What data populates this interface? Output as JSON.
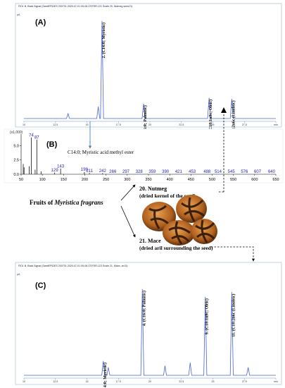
{
  "colors": {
    "trace": "#4a63d8",
    "frame": "#6a8ed8",
    "panel_border": "#b0c8e0",
    "ms_bar": "#111111",
    "ms_label": "#2020b0",
    "arrow": "#3a86c8",
    "seed_dark": "#3a2008",
    "seed_light": "#d98a35"
  },
  "icons": {
    "nutmeg_photo": "nutmeg-fruit-photo"
  },
  "panelA": {
    "letter": "(A)",
    "header": "FID1 B, Back Signal (SamlEP\\DES 200701 2020-07-01 09-06-07\\FSR-121 Scale 20, Nutmeg seed.D)",
    "pa_label": "pA"
  },
  "panelC": {
    "letter": "(C)",
    "header": "FID1 B, Back Signal (SamlEP\\DES 200701 2020-07-01 09-06-07\\FSR-123 Scale 21, Mace, arl.D)",
    "pa_label": "pA"
  },
  "panelB": {
    "letter": "(B)",
    "scale_label": "(x1,000)",
    "compound_label": "C14:0; Myristic acid methyl ester"
  },
  "fruit": {
    "prefix": "Fruits of ",
    "species": "Myristica fragrans",
    "nutmeg_title": "20. Nutmeg",
    "nutmeg_desc": "(dried kernel of the seed)",
    "mace_title": "21. Mace",
    "mace_desc": "(dried aril surrounding the seed)"
  },
  "chart_data": [
    {
      "type": "line",
      "panel": "A",
      "x_range": [
        10,
        30
      ],
      "x_ticks": [
        "10",
        "12.5",
        "15",
        "17.5",
        "20",
        "22.5",
        "25",
        "27.5",
        "min"
      ],
      "y_ticks": [
        "pA"
      ],
      "peaks": [
        {
          "x": 13.5,
          "y": 0.5,
          "label": ""
        },
        {
          "x": 15.9,
          "y": 1.2,
          "label": ""
        },
        {
          "x": 16.2,
          "y": 10.0,
          "label": "2. (C14:0; Myristic)"
        },
        {
          "x": 19.5,
          "y": 1.5,
          "label": "4. (C16:0; Palmitic)"
        },
        {
          "x": 24.7,
          "y": 2.1,
          "label": "9. (C18:1n9c; Oleic)"
        },
        {
          "x": 26.5,
          "y": 2.0,
          "label": "11. (C18:2n6c (Linoleic)"
        }
      ]
    },
    {
      "type": "bar",
      "panel": "B",
      "x_ticks": [
        "50",
        "100",
        "150",
        "200",
        "250",
        "300",
        "350",
        "400",
        "450",
        "500",
        "550",
        "600",
        "650"
      ],
      "y_ticks": [
        "0.0",
        "2.5",
        "5.0"
      ],
      "ylim": [
        0,
        7
      ],
      "peaks": [
        {
          "mz": 55,
          "abundance": 1.8,
          "label": ""
        },
        {
          "mz": 57,
          "abundance": 1.2,
          "label": ""
        },
        {
          "mz": 69,
          "abundance": 1.4,
          "label": ""
        },
        {
          "mz": 74,
          "abundance": 6.4,
          "label": "74"
        },
        {
          "mz": 83,
          "abundance": 0.8,
          "label": ""
        },
        {
          "mz": 87,
          "abundance": 6.0,
          "label": "87"
        },
        {
          "mz": 97,
          "abundance": 0.5,
          "label": ""
        },
        {
          "mz": 129,
          "abundance": 0.3,
          "label": "129"
        },
        {
          "mz": 143,
          "abundance": 1.0,
          "label": "143"
        },
        {
          "mz": 199,
          "abundance": 0.4,
          "label": "199"
        },
        {
          "mz": 211,
          "abundance": 0.2,
          "label": "211"
        },
        {
          "mz": 242,
          "abundance": 0.2,
          "label": "242"
        }
      ],
      "annotations": [
        "266",
        "297",
        "328",
        "359",
        "390",
        "421",
        "453",
        "488",
        "514",
        "545",
        "576",
        "607",
        "640"
      ]
    },
    {
      "type": "line",
      "panel": "C",
      "x_range": [
        10,
        30
      ],
      "x_ticks": [
        "10",
        "12.5",
        "15",
        "17.5",
        "20",
        "22.5",
        "25",
        "27.5",
        "min"
      ],
      "y_ticks": [
        "pA"
      ],
      "peaks": [
        {
          "x": 16.3,
          "y": 0.9,
          "label": "2. (C14:0; Myristic)"
        },
        {
          "x": 16.7,
          "y": 0.5,
          "label": ""
        },
        {
          "x": 19.4,
          "y": 5.5,
          "label": "4. (C16:0; Palmitic)"
        },
        {
          "x": 21.2,
          "y": 0.6,
          "label": ""
        },
        {
          "x": 23.2,
          "y": 0.8,
          "label": ""
        },
        {
          "x": 24.4,
          "y": 5.0,
          "label": "9. (C18:1n9c; Oleic)"
        },
        {
          "x": 26.5,
          "y": 5.3,
          "label": "11. (C18:2n6c (Linoleic)"
        },
        {
          "x": 27.8,
          "y": 0.5,
          "label": ""
        }
      ]
    }
  ]
}
